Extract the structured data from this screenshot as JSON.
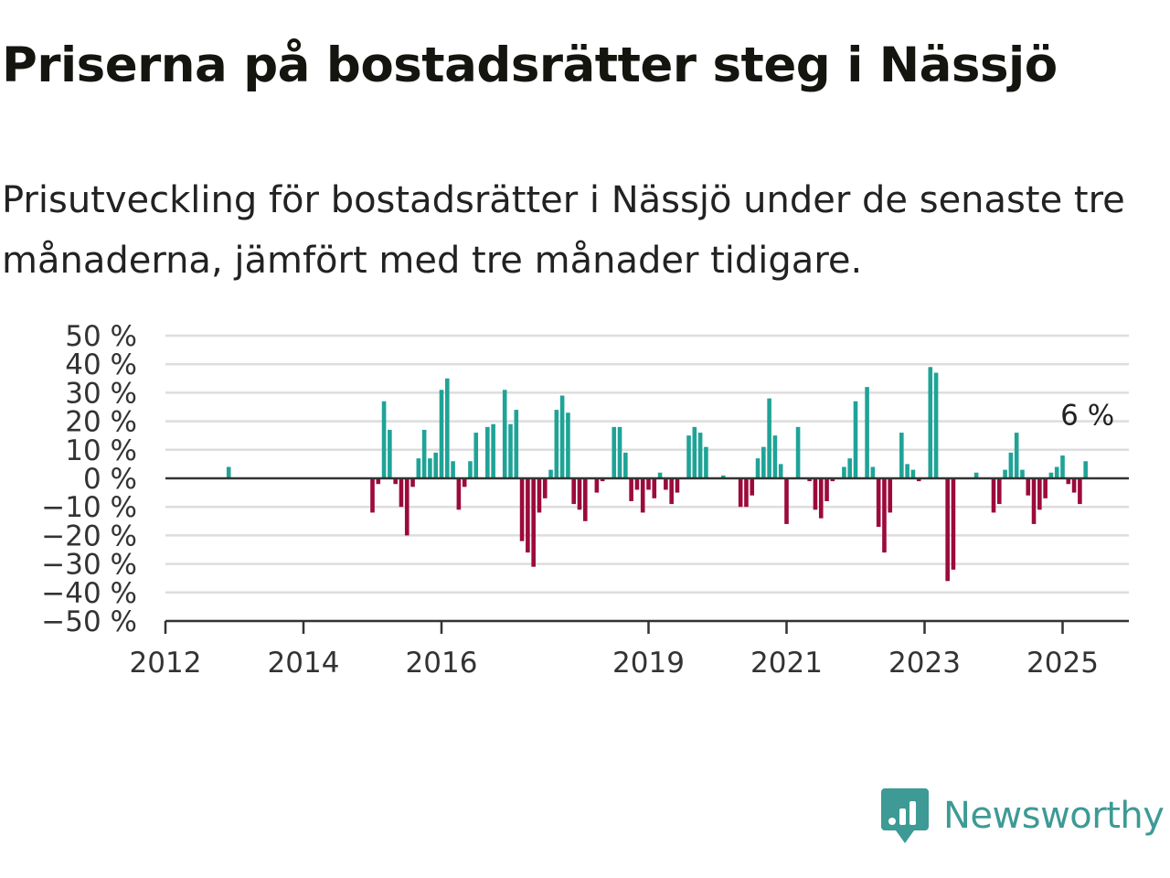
{
  "header": {
    "title": "Priserna på bostadsrätter steg i Nässjö",
    "subtitle": "Prisutveckling för bostadsrätter i Nässjö under de senaste tre månaderna, jämfört med tre månader tidigare."
  },
  "brand": {
    "name": "Newsworthy",
    "icon": "newsworthy-logo-icon",
    "color": "#3d9a95"
  },
  "colors": {
    "positive": "#1fa397",
    "negative": "#9c0a3b",
    "grid": "#dddddd",
    "axis": "#333333"
  },
  "chart_data": {
    "type": "bar",
    "title": "",
    "xlabel": "",
    "ylabel": "",
    "ylim": [
      -50,
      50
    ],
    "xlim": [
      "2012-01",
      "2025-12"
    ],
    "yticks": [
      50,
      40,
      30,
      20,
      10,
      0,
      -10,
      -20,
      -30,
      -40,
      -50
    ],
    "ytick_labels": [
      "50 %",
      "40 %",
      "30 %",
      "20 %",
      "10 %",
      "0 %",
      "−10 %",
      "−20 %",
      "−30 %",
      "−40 %",
      "−50 %"
    ],
    "xticks": [
      "2012",
      "2014",
      "2016",
      "2019",
      "2021",
      "2023",
      "2025"
    ],
    "grid": true,
    "annotation": {
      "label": "6 %",
      "x": "2025-04"
    },
    "series": [
      {
        "values": [
          {
            "x": "2012-12",
            "y": 4
          },
          {
            "x": "2015-01",
            "y": -12
          },
          {
            "x": "2015-02",
            "y": -2
          },
          {
            "x": "2015-03",
            "y": 27
          },
          {
            "x": "2015-04",
            "y": 17
          },
          {
            "x": "2015-05",
            "y": -2
          },
          {
            "x": "2015-06",
            "y": -10
          },
          {
            "x": "2015-07",
            "y": -20
          },
          {
            "x": "2015-08",
            "y": -3
          },
          {
            "x": "2015-09",
            "y": 7
          },
          {
            "x": "2015-10",
            "y": 17
          },
          {
            "x": "2015-11",
            "y": 7
          },
          {
            "x": "2015-12",
            "y": 9
          },
          {
            "x": "2016-01",
            "y": 31
          },
          {
            "x": "2016-02",
            "y": 35
          },
          {
            "x": "2016-03",
            "y": 6
          },
          {
            "x": "2016-04",
            "y": -11
          },
          {
            "x": "2016-05",
            "y": -3
          },
          {
            "x": "2016-06",
            "y": 6
          },
          {
            "x": "2016-07",
            "y": 16
          },
          {
            "x": "2016-09",
            "y": 18
          },
          {
            "x": "2016-10",
            "y": 19
          },
          {
            "x": "2016-12",
            "y": 31
          },
          {
            "x": "2017-01",
            "y": 19
          },
          {
            "x": "2017-02",
            "y": 24
          },
          {
            "x": "2017-03",
            "y": -22
          },
          {
            "x": "2017-04",
            "y": -26
          },
          {
            "x": "2017-05",
            "y": -31
          },
          {
            "x": "2017-06",
            "y": -12
          },
          {
            "x": "2017-07",
            "y": -7
          },
          {
            "x": "2017-08",
            "y": 3
          },
          {
            "x": "2017-09",
            "y": 24
          },
          {
            "x": "2017-10",
            "y": 29
          },
          {
            "x": "2017-11",
            "y": 23
          },
          {
            "x": "2017-12",
            "y": -9
          },
          {
            "x": "2018-01",
            "y": -11
          },
          {
            "x": "2018-02",
            "y": -15
          },
          {
            "x": "2018-04",
            "y": -5
          },
          {
            "x": "2018-05",
            "y": -1
          },
          {
            "x": "2018-07",
            "y": 18
          },
          {
            "x": "2018-08",
            "y": 18
          },
          {
            "x": "2018-09",
            "y": 9
          },
          {
            "x": "2018-10",
            "y": -8
          },
          {
            "x": "2018-11",
            "y": -4
          },
          {
            "x": "2018-12",
            "y": -12
          },
          {
            "x": "2019-01",
            "y": -4
          },
          {
            "x": "2019-02",
            "y": -7
          },
          {
            "x": "2019-03",
            "y": 2
          },
          {
            "x": "2019-04",
            "y": -4
          },
          {
            "x": "2019-05",
            "y": -9
          },
          {
            "x": "2019-06",
            "y": -5
          },
          {
            "x": "2019-08",
            "y": 15
          },
          {
            "x": "2019-09",
            "y": 18
          },
          {
            "x": "2019-10",
            "y": 16
          },
          {
            "x": "2019-11",
            "y": 11
          },
          {
            "x": "2020-02",
            "y": 1
          },
          {
            "x": "2020-05",
            "y": -10
          },
          {
            "x": "2020-06",
            "y": -10
          },
          {
            "x": "2020-07",
            "y": -6
          },
          {
            "x": "2020-08",
            "y": 7
          },
          {
            "x": "2020-09",
            "y": 11
          },
          {
            "x": "2020-10",
            "y": 28
          },
          {
            "x": "2020-11",
            "y": 15
          },
          {
            "x": "2020-12",
            "y": 5
          },
          {
            "x": "2021-01",
            "y": -16
          },
          {
            "x": "2021-03",
            "y": 18
          },
          {
            "x": "2021-05",
            "y": -1
          },
          {
            "x": "2021-06",
            "y": -11
          },
          {
            "x": "2021-07",
            "y": -14
          },
          {
            "x": "2021-08",
            "y": -8
          },
          {
            "x": "2021-09",
            "y": -1
          },
          {
            "x": "2021-11",
            "y": 4
          },
          {
            "x": "2021-12",
            "y": 7
          },
          {
            "x": "2022-01",
            "y": 27
          },
          {
            "x": "2022-03",
            "y": 32
          },
          {
            "x": "2022-04",
            "y": 4
          },
          {
            "x": "2022-05",
            "y": -17
          },
          {
            "x": "2022-06",
            "y": -26
          },
          {
            "x": "2022-07",
            "y": -12
          },
          {
            "x": "2022-09",
            "y": 16
          },
          {
            "x": "2022-10",
            "y": 5
          },
          {
            "x": "2022-11",
            "y": 3
          },
          {
            "x": "2022-12",
            "y": -1
          },
          {
            "x": "2023-02",
            "y": 39
          },
          {
            "x": "2023-03",
            "y": 37
          },
          {
            "x": "2023-05",
            "y": -36
          },
          {
            "x": "2023-06",
            "y": -32
          },
          {
            "x": "2023-10",
            "y": 2
          },
          {
            "x": "2024-01",
            "y": -12
          },
          {
            "x": "2024-02",
            "y": -9
          },
          {
            "x": "2024-03",
            "y": 3
          },
          {
            "x": "2024-04",
            "y": 9
          },
          {
            "x": "2024-05",
            "y": 16
          },
          {
            "x": "2024-06",
            "y": 3
          },
          {
            "x": "2024-07",
            "y": -6
          },
          {
            "x": "2024-08",
            "y": -16
          },
          {
            "x": "2024-09",
            "y": -11
          },
          {
            "x": "2024-10",
            "y": -7
          },
          {
            "x": "2024-11",
            "y": 2
          },
          {
            "x": "2024-12",
            "y": 4
          },
          {
            "x": "2025-01",
            "y": 8
          },
          {
            "x": "2025-02",
            "y": -2
          },
          {
            "x": "2025-03",
            "y": -5
          },
          {
            "x": "2025-04",
            "y": -9
          },
          {
            "x": "2025-05",
            "y": 6
          }
        ]
      }
    ]
  }
}
